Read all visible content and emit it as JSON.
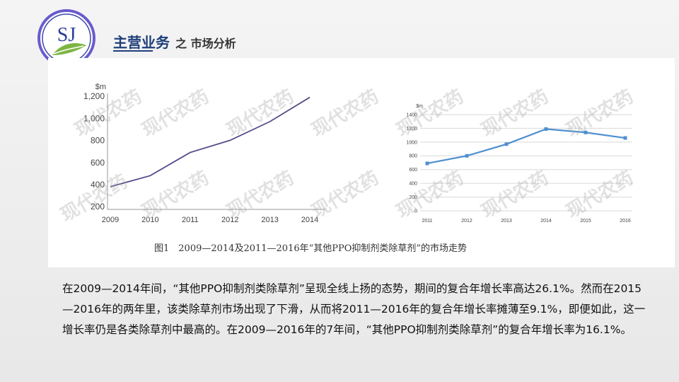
{
  "logo": {
    "text": "SJ",
    "ring_color": "#6a5acd",
    "leaf_color": "#7db544",
    "fill": "#2f3f9e"
  },
  "header": {
    "title": "主营业务",
    "subtitle": "之 市场分析"
  },
  "watermark": "现代农药",
  "figure_caption": "图1　2009—2014及2011—2016年“其他PPO抑制剂类除草剂”的市场走势",
  "body_text": "在2009—2014年间，“其他PPO抑制剂类除草剂”呈现全线上扬的态势，期间的复合年增长率高达26.1%。然而在2015—2016年的两年里，该类除草剂市场出现了下滑，从而将2011—2016年的复合年增长率摊薄至9.1%，即便如此，这一增长率仍是各类除草剂中最高的。在2009—2016年的7年间，“其他PPO抑制剂类除草剂”的复合年增长率为16.1%。",
  "chart_data": [
    {
      "type": "line",
      "unit_label": "$m",
      "x": [
        "2009",
        "2010",
        "2011",
        "2012",
        "2013",
        "2014"
      ],
      "y_ticks": [
        "200",
        "400",
        "600",
        "800",
        "1,000",
        "1,200"
      ],
      "ylim": [
        200,
        1200
      ],
      "series": [
        {
          "values": [
            380,
            480,
            690,
            800,
            970,
            1190
          ],
          "color": "#574a8a"
        }
      ],
      "grid": false
    },
    {
      "type": "line",
      "unit_label": "$m",
      "x": [
        "2011",
        "2012",
        "2013",
        "2014",
        "2015",
        "2016"
      ],
      "y_ticks": [
        "0",
        "200",
        "400",
        "600",
        "800",
        "1000",
        "1200",
        "1400"
      ],
      "ylim": [
        0,
        1400
      ],
      "series": [
        {
          "values": [
            690,
            800,
            970,
            1190,
            1140,
            1060
          ],
          "color": "#4f8fcf",
          "markers": true
        }
      ],
      "grid": true
    }
  ]
}
